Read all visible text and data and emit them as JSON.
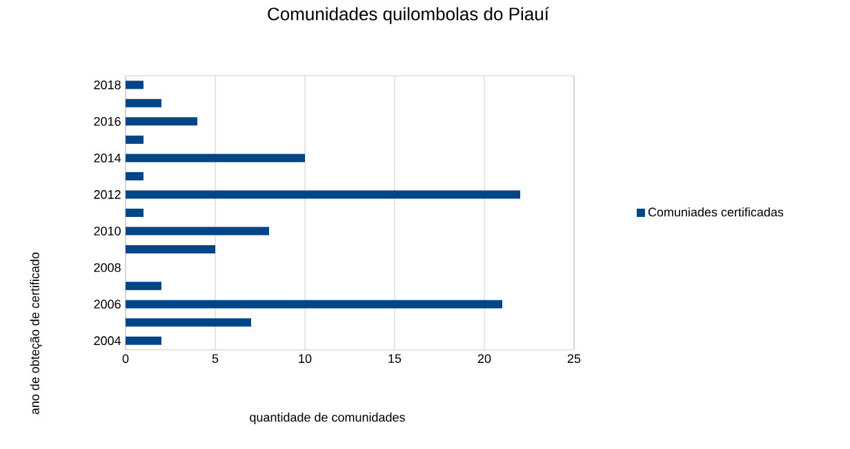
{
  "chart_data": {
    "type": "bar",
    "orientation": "horizontal",
    "title": "Comunidades quilombolas do Piauí",
    "xlabel": "quantidade de comunidades",
    "ylabel": "ano de obteção de certificado",
    "categories": [
      "2018",
      null,
      "2016",
      null,
      "2014",
      null,
      "2012",
      null,
      "2010",
      null,
      "2008",
      null,
      "2006",
      null,
      "2004"
    ],
    "series": [
      {
        "name": "Comuniades certificadas",
        "color": "#004586",
        "values": [
          1,
          2,
          4,
          1,
          10,
          1,
          22,
          1,
          8,
          5,
          0,
          2,
          21,
          7,
          2
        ]
      }
    ],
    "xlim": [
      0,
      25
    ],
    "xticks": [
      0,
      5,
      10,
      15,
      20,
      25
    ],
    "grid": "x",
    "legend": "right"
  }
}
